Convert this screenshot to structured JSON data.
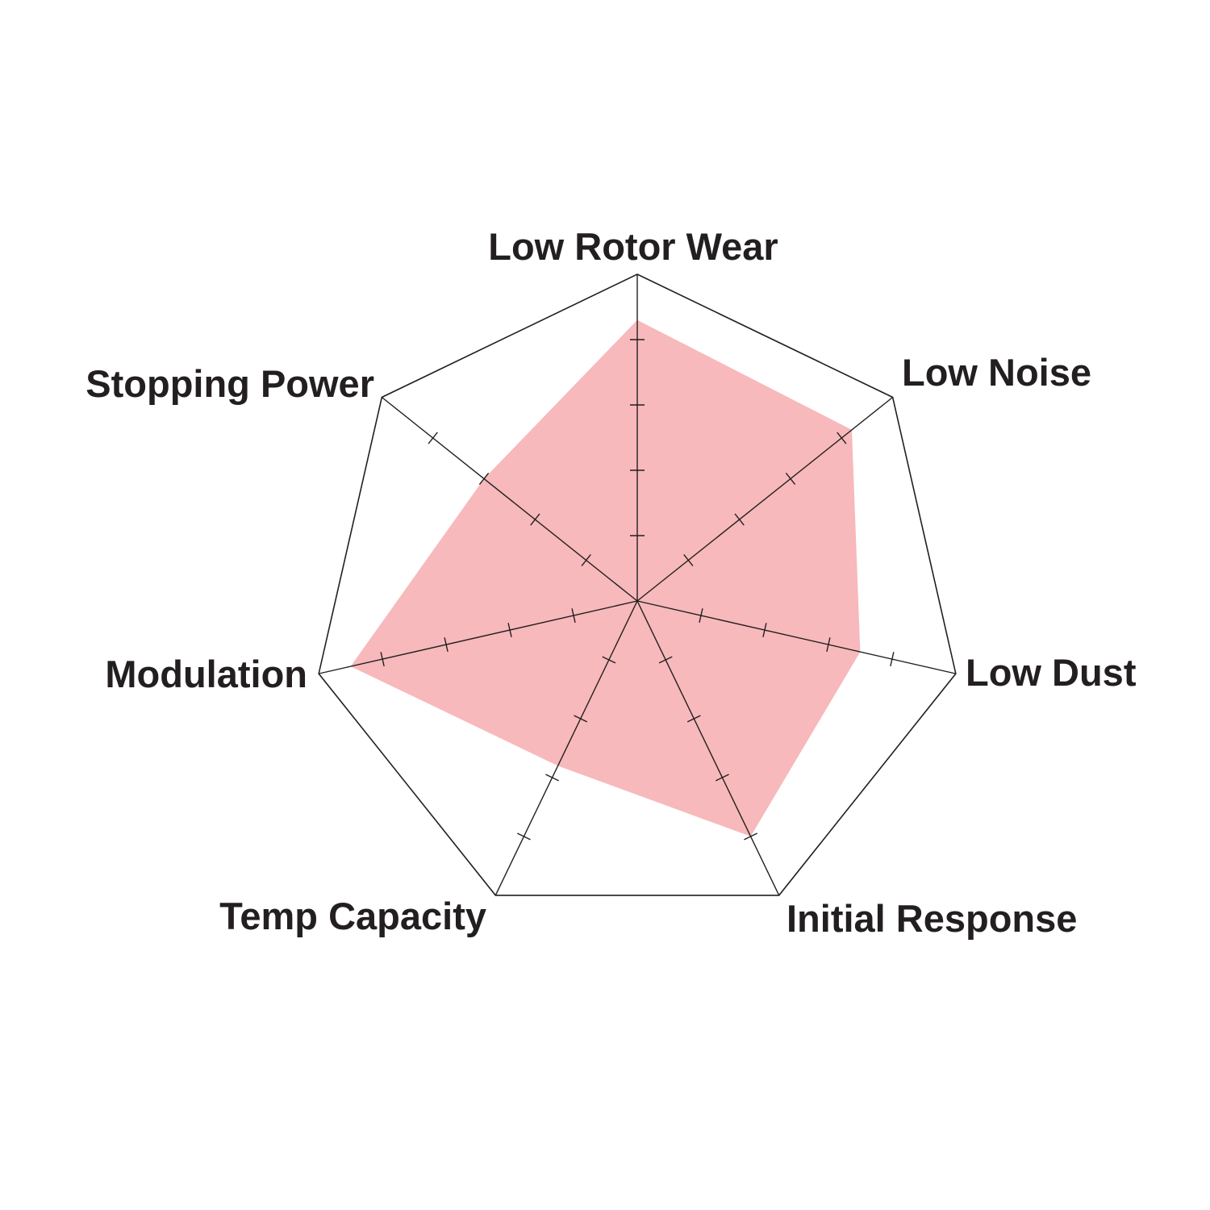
{
  "chart_data": {
    "type": "radar",
    "title": "",
    "axes": [
      "Low Rotor Wear",
      "Low Noise",
      "Low Dust",
      "Initial Response",
      "Temp Capacity",
      "Modulation",
      "Stopping Power"
    ],
    "values": [
      4.3,
      4.2,
      3.5,
      4.0,
      2.8,
      4.5,
      3.0
    ],
    "range": [
      0,
      5
    ],
    "ticks": [
      1,
      2,
      3,
      4
    ],
    "grid": "outer polygon only",
    "legend": "none",
    "colors": {
      "fill": "#f7b9bb",
      "lines": "#231f20",
      "text": "#231f20"
    }
  }
}
